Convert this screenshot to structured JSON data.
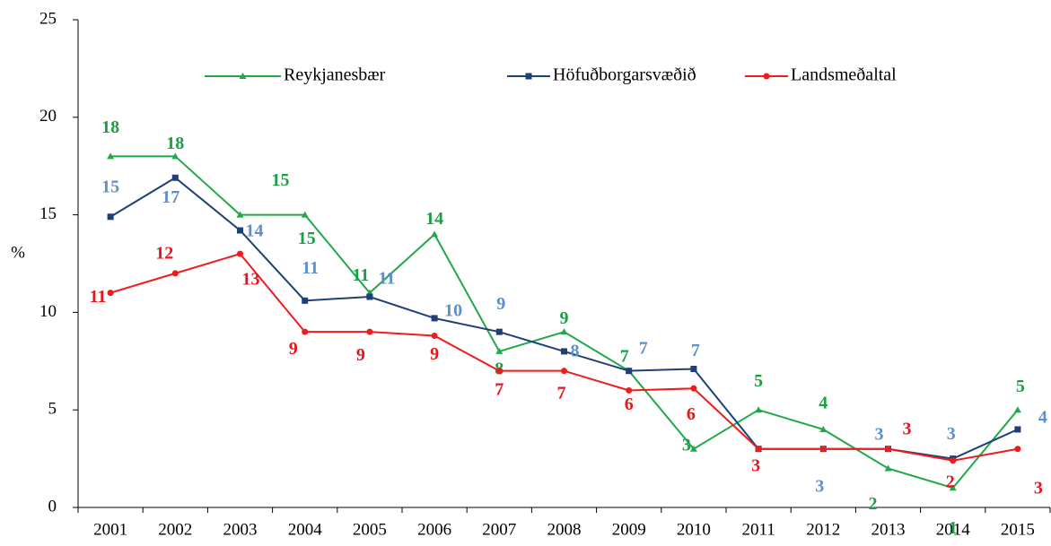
{
  "chart_data": {
    "type": "line",
    "y_label": "%",
    "categories": [
      "2001",
      "2002",
      "2003",
      "2004",
      "2005",
      "2006",
      "2007",
      "2008",
      "2009",
      "2010",
      "2011",
      "2012",
      "2013",
      "2014",
      "2015"
    ],
    "ylim": [
      0,
      25
    ],
    "yticks": [
      0,
      5,
      10,
      15,
      20,
      25
    ],
    "legend": "top",
    "series": [
      {
        "name": "Reykjanesbær",
        "color": "#22a84a",
        "label_color": "#1a9e46",
        "marker": "triangle",
        "values": [
          18,
          18,
          15,
          15,
          11,
          14,
          8,
          9,
          7,
          3,
          5,
          4,
          2,
          1,
          5
        ]
      },
      {
        "name": "Höfuðborgarsvæðið",
        "color": "#1f3f77",
        "label_color": "#5b8fd0",
        "marker": "square",
        "values": [
          14.9,
          16.9,
          14.2,
          10.6,
          10.8,
          9.7,
          9.0,
          8.0,
          7.0,
          7.1,
          3.0,
          3.0,
          3.0,
          2.5,
          4.0
        ],
        "value_labels": [
          "15",
          "17",
          "14",
          "11",
          "11",
          "10",
          "9",
          "8",
          "7",
          "7",
          null,
          "3",
          "3",
          "3",
          "4"
        ]
      },
      {
        "name": "Landsmeðaltal",
        "color": "#ee1c1c",
        "label_color": "#e8141b",
        "marker": "circle",
        "values": [
          11.0,
          12.0,
          13.0,
          9.0,
          9.0,
          8.8,
          7.0,
          7.0,
          6.0,
          6.1,
          3.0,
          3.0,
          3.0,
          2.4,
          3.0
        ],
        "value_labels": [
          "11",
          "12",
          "13",
          "9",
          "9",
          "9",
          "7",
          "7",
          "6",
          "6",
          "3",
          null,
          "3",
          "2",
          "3"
        ]
      }
    ]
  }
}
